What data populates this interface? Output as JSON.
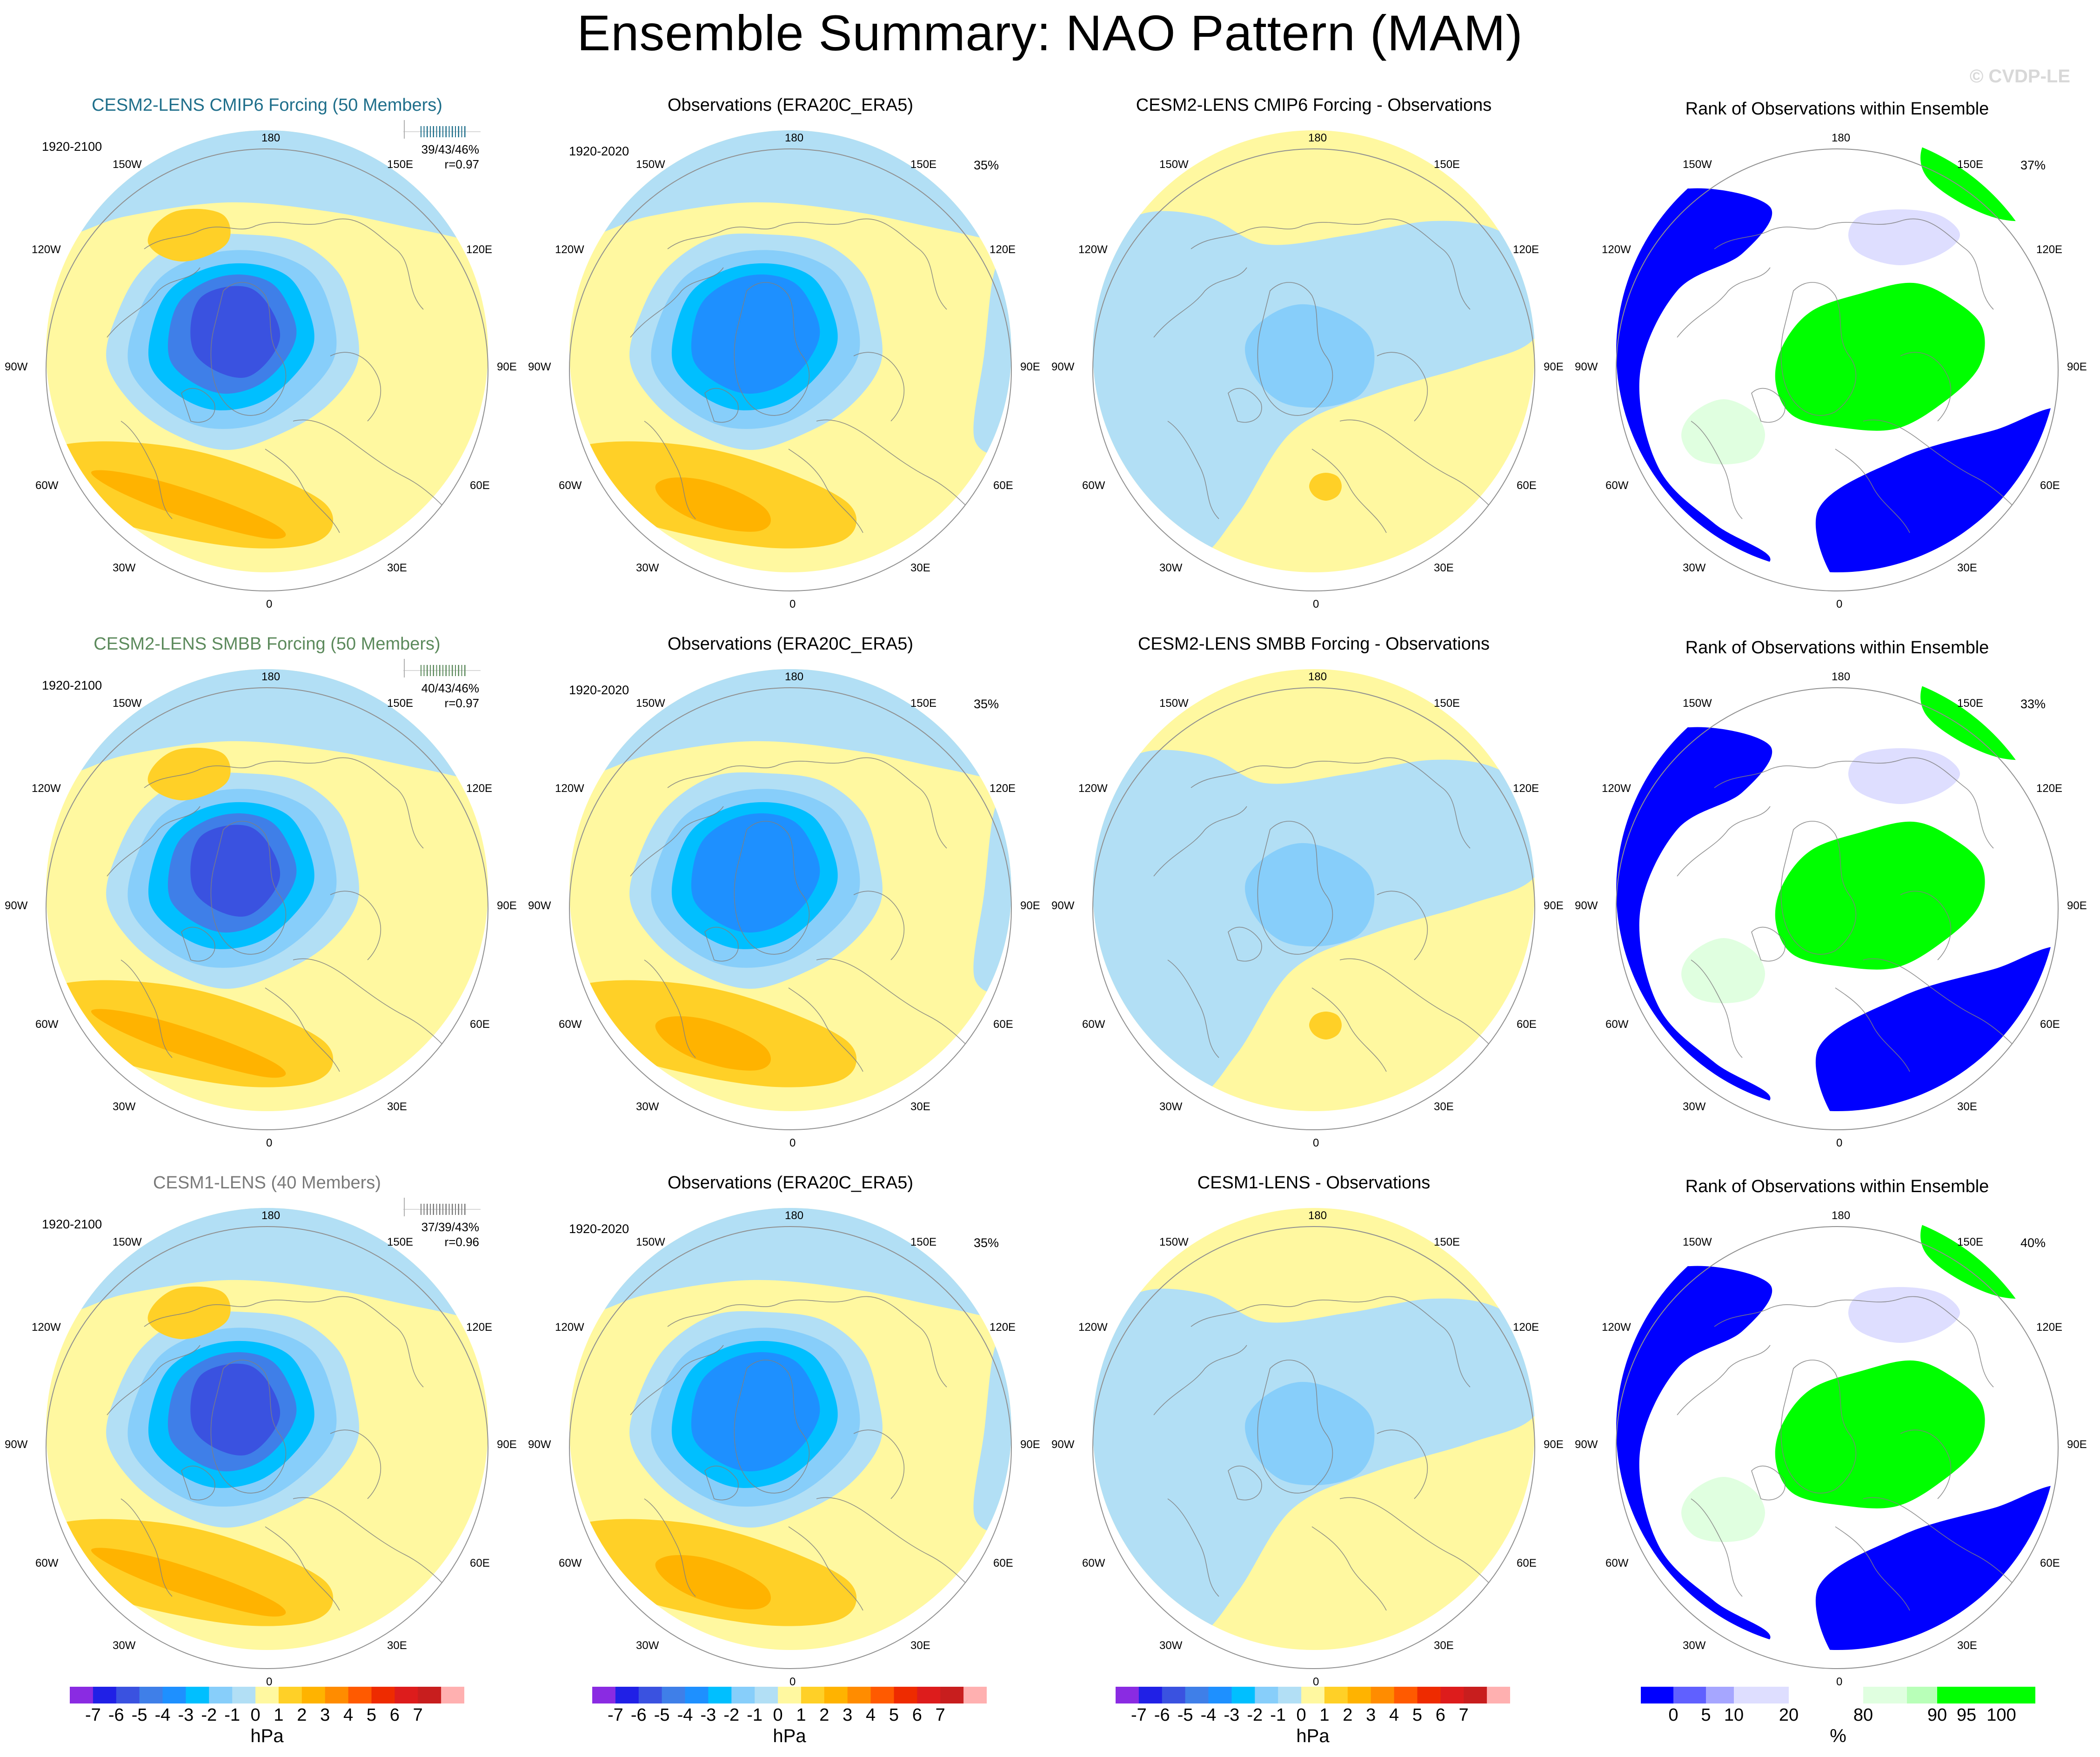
{
  "title": "Ensemble Summary: NAO Pattern (MAM)",
  "watermark": "© CVDP-LE",
  "colors": {
    "neg7": "#8a2be2",
    "neg6": "#2020e6",
    "neg5": "#3a52e0",
    "neg4": "#3f7fe8",
    "neg3": "#1e90ff",
    "neg2": "#00bfff",
    "neg1": "#87cefa",
    "neg0": "#b2dff5",
    "pos0": "#fff8a0",
    "pos1": "#ffd027",
    "pos2": "#ffb300",
    "pos3": "#ff8c00",
    "pos4": "#ff5a00",
    "pos5": "#ee2b00",
    "pos6": "#dd1c1c",
    "pos7": "#c81e1e",
    "pos8": "#ffb0b0",
    "rank_0": "#0000ff",
    "rank_5": "#6060ff",
    "rank_10": "#a6a6ff",
    "rank_20": "#dedeff",
    "rank_80": "#ffffff",
    "rank_90": "#e0ffe0",
    "rank_95": "#b8ffb8",
    "rank_100": "#00ff00",
    "row1_title": "#1f6f8b",
    "row2_title": "#5c8a5c",
    "row3_title": "#7a7a7a",
    "coast": "#808080",
    "map_edge": "#909090"
  },
  "map_labels": {
    "top": "180",
    "bottom": "0",
    "w150": "150W",
    "e150": "150E",
    "w120": "120W",
    "e120": "120E",
    "w90": "90W",
    "e90": "90E",
    "w60": "60W",
    "e60": "60E",
    "w30": "30W",
    "e30": "30E"
  },
  "rows": [
    {
      "model_title": "CESM2-LENS CMIP6 Forcing (50 Members)",
      "model_period": "1920-2100",
      "model_stats_1": "39/43/46%",
      "model_stats_2": "r=0.97",
      "obs_title": "Observations (ERA20C_ERA5)",
      "obs_period": "1920-2020",
      "obs_pct": "35%",
      "diff_title": "CESM2-LENS CMIP6 Forcing - Observations",
      "rank_title": "Rank of Observations within Ensemble",
      "rank_pct": "37%"
    },
    {
      "model_title": "CESM2-LENS SMBB Forcing (50 Members)",
      "model_period": "1920-2100",
      "model_stats_1": "40/43/46%",
      "model_stats_2": "r=0.97",
      "obs_title": "Observations (ERA20C_ERA5)",
      "obs_period": "1920-2020",
      "obs_pct": "35%",
      "diff_title": "CESM2-LENS SMBB Forcing - Observations",
      "rank_title": "Rank of Observations within Ensemble",
      "rank_pct": "33%"
    },
    {
      "model_title": "CESM1-LENS (40 Members)",
      "model_period": "1920-2100",
      "model_stats_1": "37/39/43%",
      "model_stats_2": "r=0.96",
      "obs_title": "Observations (ERA20C_ERA5)",
      "obs_period": "1920-2020",
      "obs_pct": "35%",
      "diff_title": "CESM1-LENS - Observations",
      "rank_title": "Rank of Observations within Ensemble",
      "rank_pct": "40%"
    }
  ],
  "colorbar_hpa": {
    "ticks": [
      "-7",
      "-6",
      "-5",
      "-4",
      "-3",
      "-2",
      "-1",
      "0",
      "1",
      "2",
      "3",
      "4",
      "5",
      "6",
      "7"
    ],
    "unit": "hPa"
  },
  "colorbar_rank": {
    "ticks": [
      "0",
      "5",
      "10",
      "20",
      "80",
      "90",
      "95",
      "100"
    ],
    "unit": "%"
  }
}
